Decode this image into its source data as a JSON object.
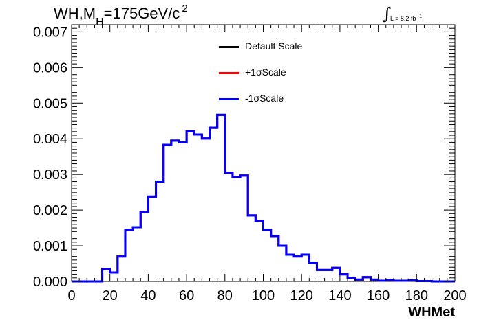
{
  "title": {
    "prefix": "WH,M",
    "subscript": "H",
    "main": "=175GeV/c",
    "superscript": "2"
  },
  "luminosity": {
    "integral_symbol": "∫",
    "text": "L = 8.2 fb",
    "superscript": "-1"
  },
  "legend": {
    "items": [
      {
        "label": "Default Scale",
        "color": "#000000"
      },
      {
        "label": "+1σScale",
        "color": "#ff0000"
      },
      {
        "label": "-1σScale",
        "color": "#0000ff"
      }
    ]
  },
  "chart_data": {
    "type": "line",
    "title": "WH,MH=175GeV/c 2",
    "xlabel": "WHMet",
    "ylabel": "",
    "xlim": [
      0,
      200
    ],
    "ylim": [
      0,
      0.0072
    ],
    "x_ticks": [
      "0",
      "20",
      "40",
      "60",
      "80",
      "100",
      "120",
      "140",
      "160",
      "180",
      "200"
    ],
    "y_ticks": [
      "0.000",
      "0.001",
      "0.002",
      "0.003",
      "0.004",
      "0.005",
      "0.006",
      "0.007"
    ],
    "bin_edges": [
      0,
      4,
      8,
      12,
      16,
      20,
      24,
      28,
      32,
      36,
      40,
      44,
      48,
      52,
      56,
      60,
      64,
      68,
      72,
      76,
      80,
      84,
      88,
      92,
      96,
      100,
      104,
      108,
      112,
      116,
      120,
      124,
      128,
      132,
      136,
      140,
      144,
      148,
      152,
      156,
      160,
      164,
      168,
      172,
      176,
      180,
      184,
      188,
      192,
      196,
      200
    ],
    "series": [
      {
        "name": "Default Scale",
        "color": "#000000",
        "values": [
          0,
          0,
          0,
          0,
          0.00035,
          0.00025,
          0.0007,
          0.00145,
          0.00152,
          0.00195,
          0.00238,
          0.0028,
          0.00383,
          0.00395,
          0.0039,
          0.00421,
          0.00412,
          0.00401,
          0.00431,
          0.00467,
          0.00305,
          0.00293,
          0.00297,
          0.00185,
          0.0017,
          0.00145,
          0.00127,
          0.001,
          0.00075,
          0.0007,
          0.00075,
          0.00052,
          0.00032,
          0.00032,
          0.00038,
          0.0002,
          0.0001,
          5e-05,
          0.00012,
          5e-05,
          2e-05,
          4e-05,
          2e-05,
          2e-05,
          3e-05,
          1e-05,
          1e-05,
          0,
          0,
          0
        ]
      },
      {
        "name": "+1σScale",
        "color": "#ff0000",
        "values": [
          0,
          0,
          0,
          0,
          0.00035,
          0.00025,
          0.0007,
          0.00145,
          0.00152,
          0.00195,
          0.00238,
          0.0028,
          0.00383,
          0.00395,
          0.0039,
          0.00421,
          0.00412,
          0.00401,
          0.00431,
          0.00467,
          0.00305,
          0.00293,
          0.00297,
          0.00185,
          0.0017,
          0.00145,
          0.00127,
          0.001,
          0.00075,
          0.0007,
          0.00075,
          0.00052,
          0.00032,
          0.00032,
          0.00038,
          0.0002,
          0.0001,
          5e-05,
          0.00012,
          5e-05,
          2e-05,
          4e-05,
          2e-05,
          2e-05,
          3e-05,
          1e-05,
          1e-05,
          0,
          0,
          0
        ]
      },
      {
        "name": "-1σScale",
        "color": "#0000ff",
        "values": [
          0,
          0,
          0,
          0,
          0.00035,
          0.00025,
          0.0007,
          0.00145,
          0.00152,
          0.00195,
          0.00238,
          0.0028,
          0.00383,
          0.00395,
          0.0039,
          0.00421,
          0.00412,
          0.00401,
          0.00431,
          0.00467,
          0.00305,
          0.00293,
          0.00297,
          0.00185,
          0.0017,
          0.00145,
          0.00127,
          0.001,
          0.00075,
          0.0007,
          0.00075,
          0.00052,
          0.00032,
          0.00032,
          0.00038,
          0.0002,
          0.0001,
          5e-05,
          0.00012,
          5e-05,
          2e-05,
          4e-05,
          2e-05,
          2e-05,
          3e-05,
          1e-05,
          1e-05,
          0,
          0,
          0
        ]
      }
    ],
    "grid": false,
    "legend_position": "top-center"
  }
}
